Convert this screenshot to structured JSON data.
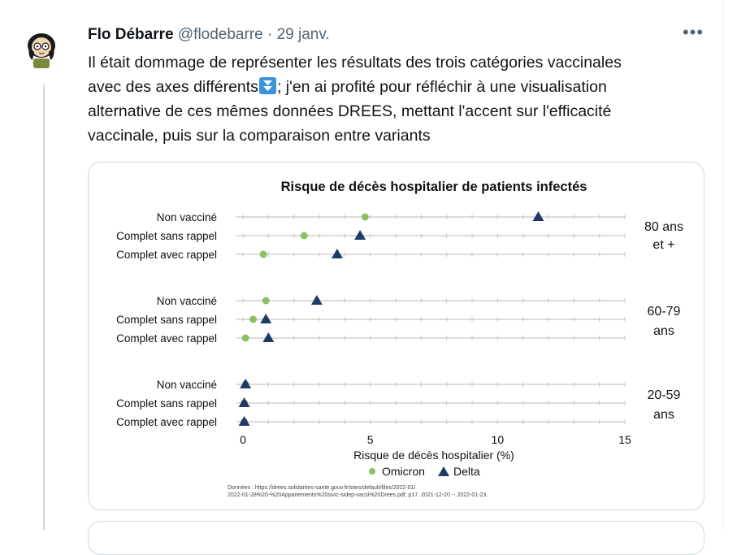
{
  "tweet": {
    "author_name": "Flo Débarre",
    "handle": "@flodebarre",
    "separator": "·",
    "date": "29 janv.",
    "more_label": "•••",
    "lines": [
      "Il était dommage de représenter les résultats des trois catégories vaccinales",
      "; j'en ai profité pour réfléchir à une visualisation",
      "alternative de ces mêmes données DREES, mettant l'accent sur l'efficacité",
      "vaccinale, puis sur la comparaison entre variants"
    ],
    "line2_prefix": "avec des axes différents",
    "emoji_icon": "down-arrow-button-emoji"
  },
  "chart_data": {
    "type": "scatter",
    "title": "Risque de décès hospitalier de patients infectés",
    "xlabel": "Risque de décès hospitalier (%)",
    "xlim": [
      0,
      15
    ],
    "x_ticks": [
      "0",
      "5",
      "10",
      "15"
    ],
    "groups": [
      {
        "label_lines": [
          "80 ans",
          "et +"
        ],
        "categories": [
          "Non vacciné",
          "Complet sans rappel",
          "Complet avec rappel"
        ],
        "omicron": [
          4.8,
          2.4,
          0.8
        ],
        "delta": [
          11.6,
          4.6,
          3.7
        ]
      },
      {
        "label_lines": [
          "60-79",
          "ans"
        ],
        "categories": [
          "Non vacciné",
          "Complet sans rappel",
          "Complet avec rappel"
        ],
        "omicron": [
          0.9,
          0.4,
          0.1
        ],
        "delta": [
          2.9,
          0.9,
          1.0
        ]
      },
      {
        "label_lines": [
          "20-59",
          "ans"
        ],
        "categories": [
          "Non vacciné",
          "Complet sans rappel",
          "Complet avec rappel"
        ],
        "omicron": [
          0.1,
          0.05,
          0.05
        ],
        "delta": [
          0.1,
          0.05,
          0.05
        ]
      }
    ],
    "series": [
      {
        "name": "Omicron",
        "color": "#8cc063",
        "marker": "circle"
      },
      {
        "name": "Delta",
        "color": "#1f3a68",
        "marker": "triangle"
      }
    ],
    "legend_position": "bottom-center",
    "source_lines": [
      "Données : https://drees.solidarites-sante.gouv.fr/sites/default/files/2022-01/",
      "2022-01-28%20-%20Appariements%20sivic-sidep-vacsi%20Drees.pdf, p17. 2021-12-20 -- 2022-01-23."
    ],
    "grid": true
  },
  "colors": {
    "text": "#0f1419",
    "muted": "#536471",
    "border": "#cfd9de",
    "emoji_blue": "#3b94d9"
  }
}
